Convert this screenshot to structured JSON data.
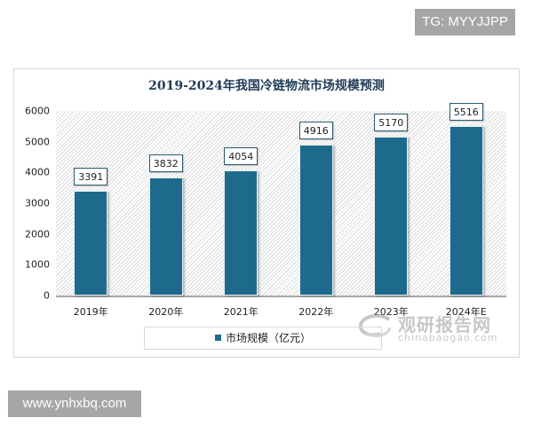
{
  "badges": {
    "top_right": "TG: MYYJJPP",
    "bottom_left": "www.ynhxbq.com"
  },
  "watermark": {
    "cn": "观研报告网",
    "en": "chinabaogao.com"
  },
  "colors": {
    "bar": "#1e6a8c",
    "title": "#1f3b56"
  },
  "chart_data": {
    "type": "bar",
    "title": "2019-2024年我国冷链物流市场规模预测",
    "categories": [
      "2019年",
      "2020年",
      "2021年",
      "2022年",
      "2023年",
      "2024年E"
    ],
    "series": [
      {
        "name": "市场规模（亿元）",
        "values": [
          3391,
          3832,
          4054,
          4916,
          5170,
          5516
        ]
      }
    ],
    "xlabel": "",
    "ylabel": "",
    "ylim": [
      0,
      6000
    ],
    "yticks": [
      0,
      1000,
      2000,
      3000,
      4000,
      5000,
      6000
    ],
    "grid": false,
    "legend_position": "bottom",
    "data_labels": true
  }
}
